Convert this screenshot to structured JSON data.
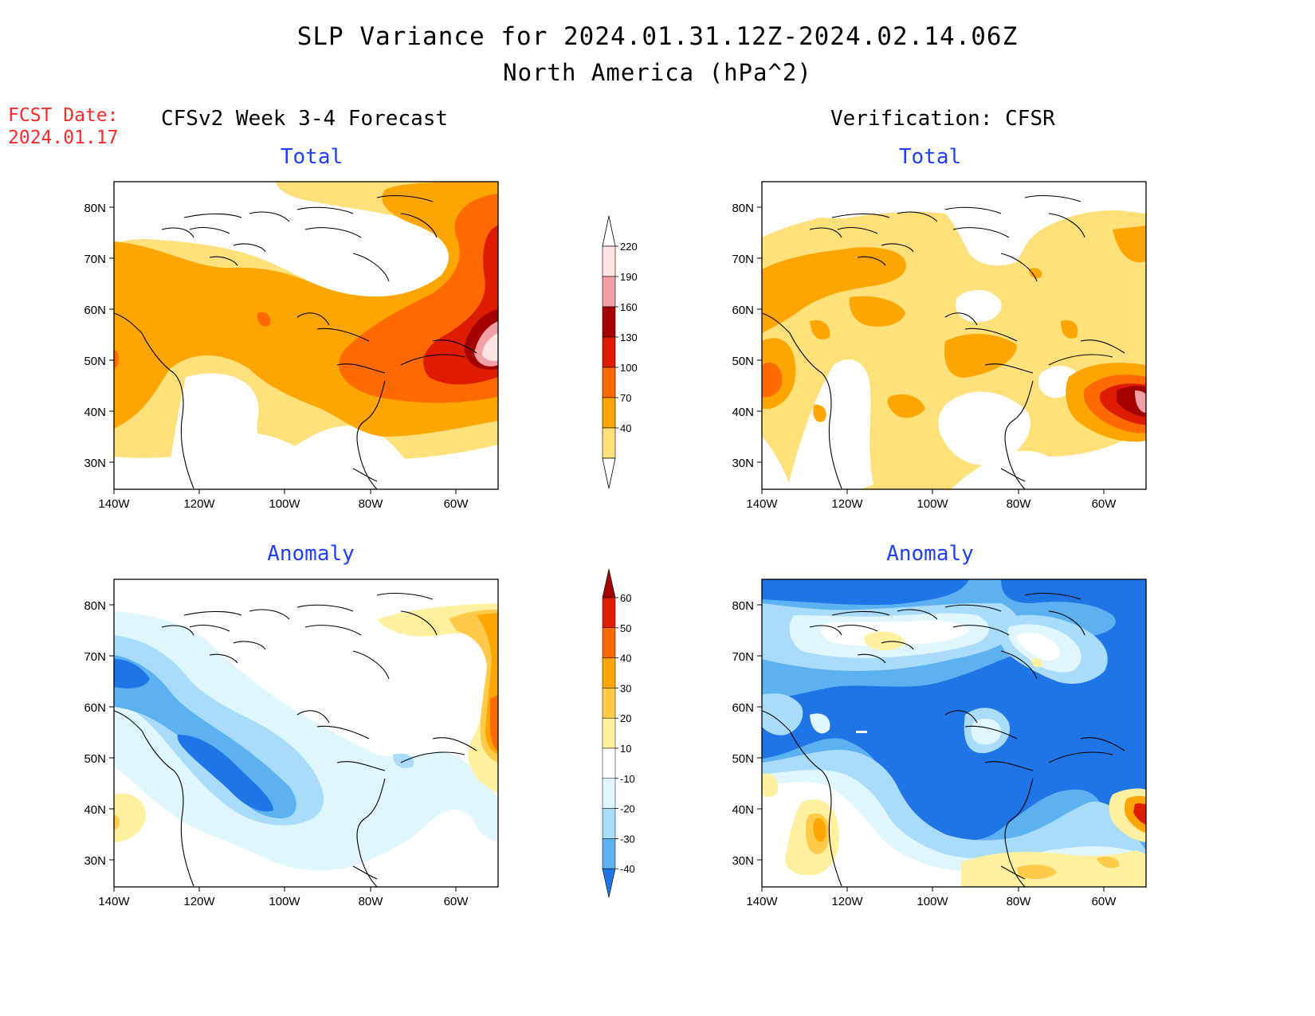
{
  "header": {
    "title": "SLP Variance for 2024.01.31.12Z-2024.02.14.06Z",
    "subtitle": "North America (hPa^2)",
    "fcst_label": "FCST Date:",
    "fcst_date": "2024.01.17",
    "left_column": "CFSv2 Week 3-4 Forecast",
    "right_column": "Verification: CFSR"
  },
  "panels": [
    {
      "title": "Total"
    },
    {
      "title": "Total"
    },
    {
      "title": "Anomaly"
    },
    {
      "title": "Anomaly"
    }
  ],
  "axes": {
    "lat_labels": [
      "80N",
      "70N",
      "60N",
      "50N",
      "40N",
      "30N"
    ],
    "lon_labels": [
      "140W",
      "120W",
      "100W",
      "80W",
      "60W"
    ]
  },
  "colorbars": {
    "total": {
      "labels": [
        "220",
        "190",
        "160",
        "130",
        "100",
        "70",
        "40"
      ],
      "colors": [
        "#ffe4e4",
        "#f2a0a6",
        "#a50000",
        "#dd1c00",
        "#ff6a00",
        "#ffa500",
        "#ffe07a"
      ]
    },
    "anomaly": {
      "labels": [
        "60",
        "50",
        "40",
        "30",
        "20",
        "10",
        "-10",
        "-20",
        "-30",
        "-40"
      ],
      "colors": [
        "#a50000",
        "#dd1c00",
        "#ff6a00",
        "#ffa500",
        "#ffc94a",
        "#fff0a0",
        "#ffffff",
        "#e0f6ff",
        "#a9dcfa",
        "#5cb1f0",
        "#1f74e6"
      ]
    }
  },
  "palette": {
    "y1": "#fff0a0",
    "y2": "#ffe07a",
    "o1": "#ffc94a",
    "o2": "#ffa500",
    "o3": "#ff6a00",
    "r1": "#dd1c00",
    "r2": "#a50000",
    "p1": "#f2a0a6",
    "p2": "#ffe4e4",
    "b1": "#e0f6ff",
    "b2": "#a9dcfa",
    "b3": "#5cb1f0",
    "b4": "#1f74e6"
  }
}
